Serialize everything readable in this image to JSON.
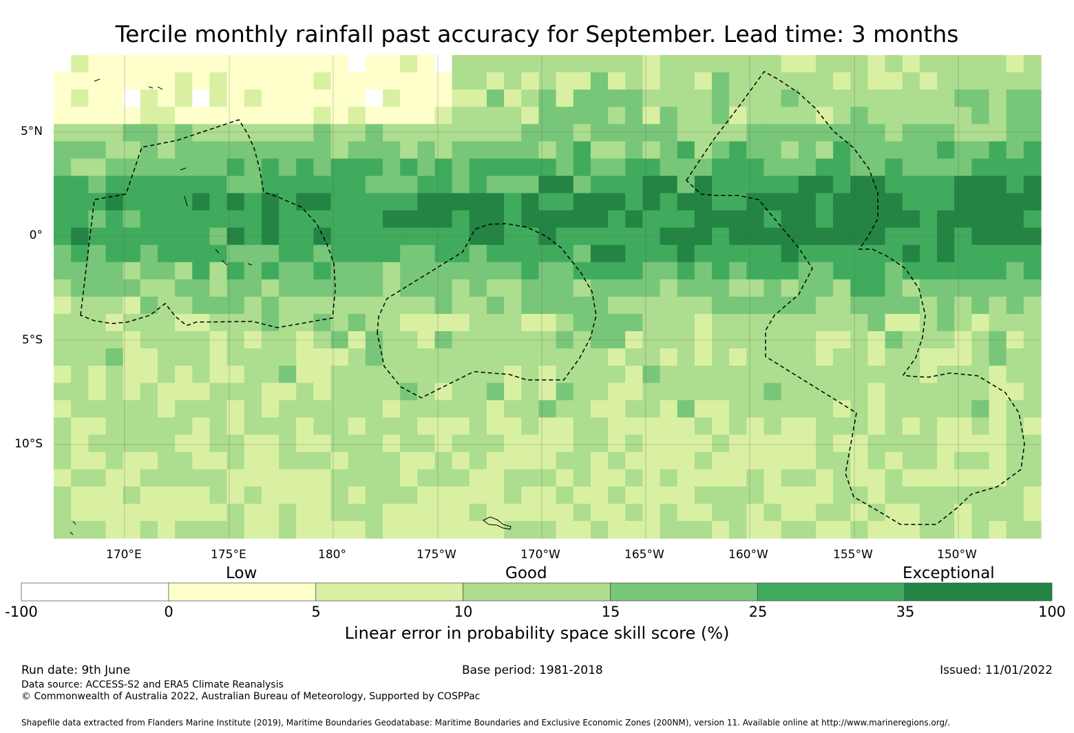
{
  "title": "Tercile monthly rainfall past accuracy for September. Lead time: 3 months",
  "map": {
    "lon_labels": [
      "170°E",
      "175°E",
      "180°",
      "175°W",
      "170°W",
      "165°W",
      "160°W",
      "155°W",
      "150°W"
    ],
    "lat_labels": [
      "5°N",
      "0°",
      "5°S",
      "10°S"
    ],
    "grid_cols": 57,
    "grid_rows": 28
  },
  "colorbar": {
    "categories": [
      "Low",
      "Good",
      "Exceptional"
    ],
    "ticks": [
      "-100",
      "0",
      "5",
      "10",
      "15",
      "25",
      "35",
      "100"
    ],
    "colors": [
      "#ffffff",
      "#ffffcc",
      "#d9f0a3",
      "#addd8e",
      "#78c679",
      "#41ab5d",
      "#238443"
    ],
    "label": "Linear error in probability space skill score (%)"
  },
  "footer": {
    "run_date": "Run date: 9th June",
    "base_period": "Base period: 1981-2018",
    "issued": "Issued: 11/01/2022",
    "data_source": "Data source: ACCESS-S2 and ERA5 Climate Reanalysis",
    "copyright": "© Commonwealth of Australia 2022, Australian Bureau of Meteorology, Supported by COSPPac",
    "shapefile": "Shapefile data extracted from Flanders Marine Institute (2019), Maritime Boundaries Geodatabase: Maritime Boundaries and Exclusive Economic Zones (200NM), version 11. Available online at http://www.marineregions.org/."
  }
}
